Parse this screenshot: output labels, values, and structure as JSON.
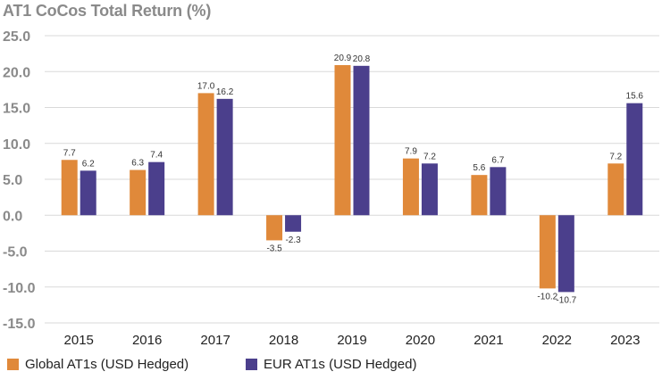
{
  "chart_data": {
    "type": "bar",
    "title": "AT1 CoCos Total Return (%)",
    "categories": [
      "2015",
      "2016",
      "2017",
      "2018",
      "2019",
      "2020",
      "2021",
      "2022",
      "2023"
    ],
    "series": [
      {
        "name": "Global AT1s (USD Hedged)",
        "color": "#e0893a",
        "values": [
          7.7,
          6.3,
          17.0,
          -3.5,
          20.9,
          7.9,
          5.6,
          -10.2,
          7.2
        ],
        "labels": [
          "7.7",
          "6.3",
          "17.0",
          "-3.5",
          "20.9",
          "7.9",
          "5.6",
          "-10.2",
          "7.2"
        ]
      },
      {
        "name": "EUR AT1s (USD Hedged)",
        "color": "#4b3f8c",
        "values": [
          6.2,
          7.4,
          16.2,
          -2.3,
          20.8,
          7.2,
          6.7,
          -10.7,
          15.6
        ],
        "labels": [
          "6.2",
          "7.4",
          "16.2",
          "-2.3",
          "20.8",
          "7.2",
          "6.7",
          "-10.7",
          "15.6"
        ]
      }
    ],
    "ylim": [
      -15,
      25
    ],
    "yticks": [
      "25.0",
      "20.0",
      "15.0",
      "10.0",
      "5.0",
      "0.0",
      "-5.0",
      "-10.0",
      "-15.0"
    ],
    "ytick_values": [
      25,
      20,
      15,
      10,
      5,
      0,
      -5,
      -10,
      -15
    ],
    "grid": true,
    "legend": "bottom-left"
  }
}
